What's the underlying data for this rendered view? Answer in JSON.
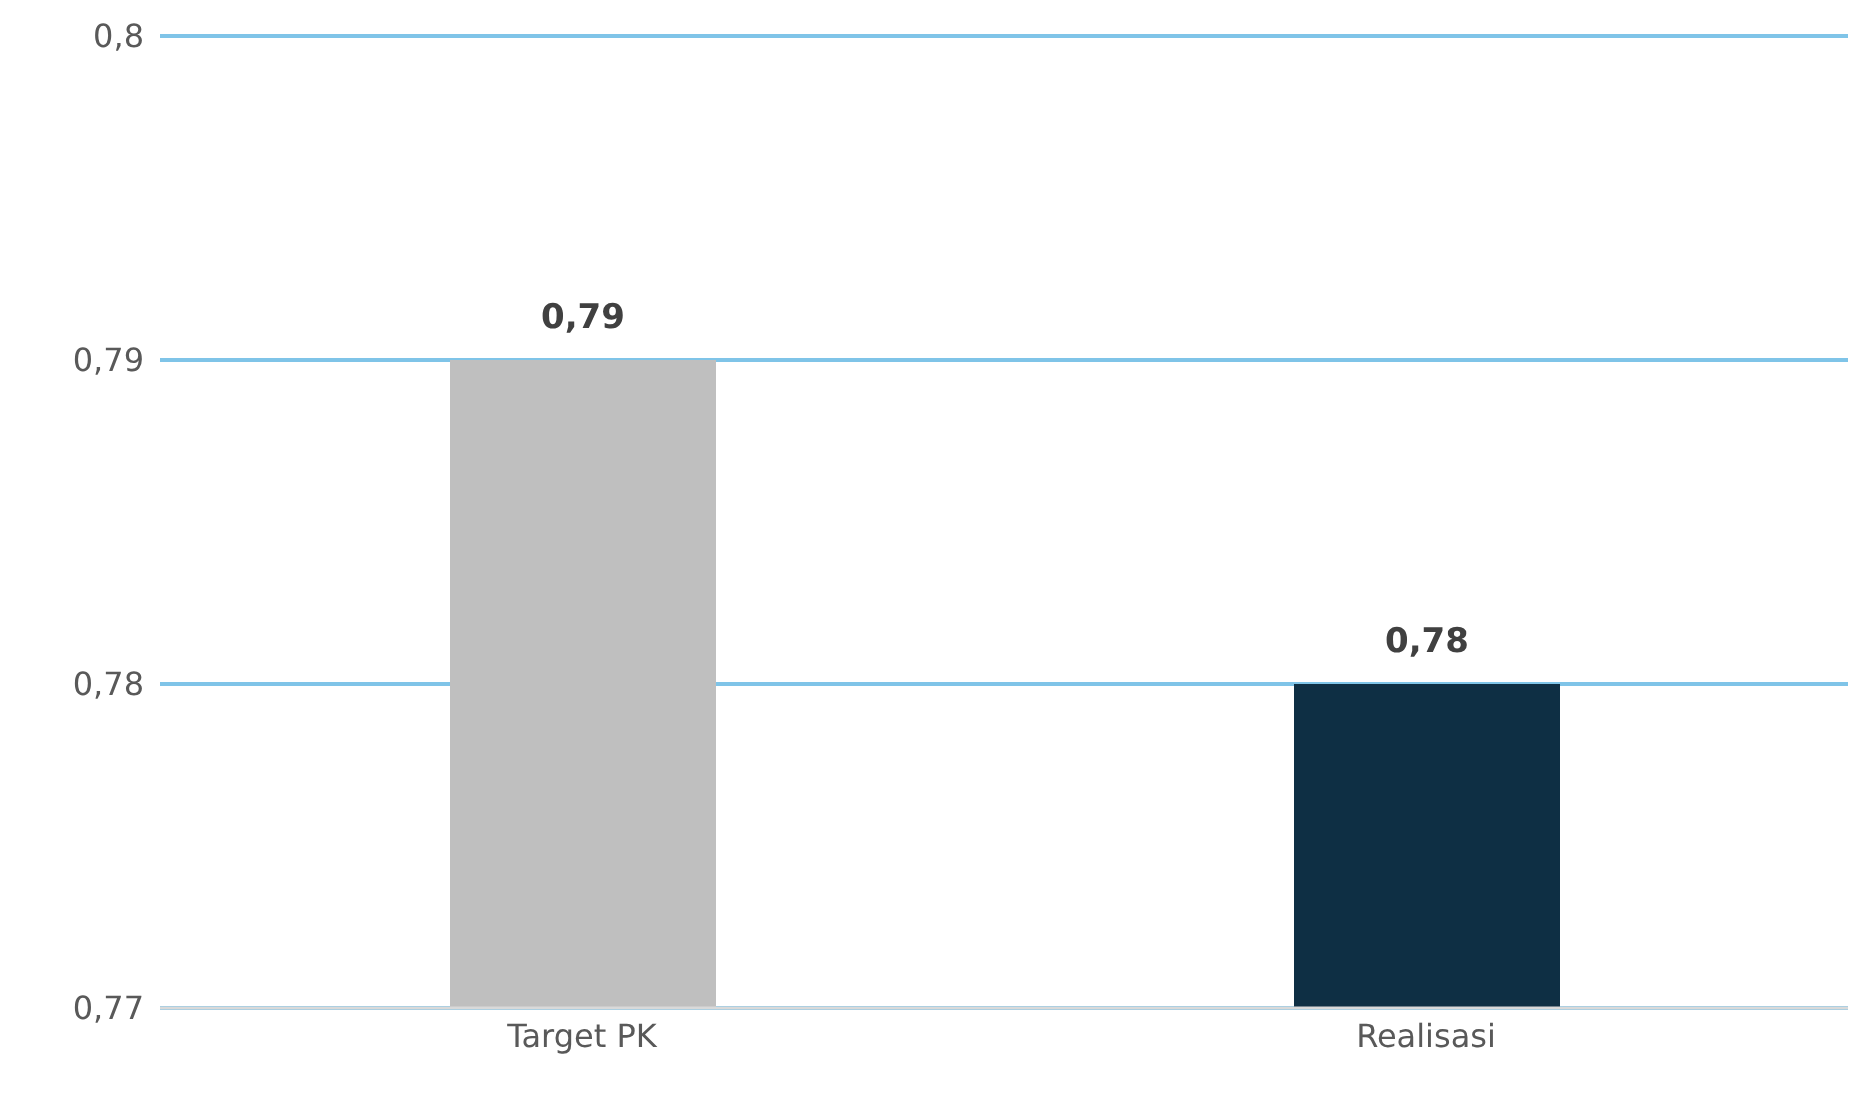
{
  "chart_data": {
    "type": "bar",
    "categories": [
      "Target PK",
      "Realisasi"
    ],
    "values": [
      0.79,
      0.78
    ],
    "colors": [
      "#bfbfbf",
      "#0e2f44"
    ],
    "value_labels": [
      "0,79",
      "0,78"
    ],
    "ylim": [
      0.77,
      0.8
    ],
    "yticks": [
      {
        "value": 0.77,
        "label": "0,77"
      },
      {
        "value": 0.78,
        "label": "0,78"
      },
      {
        "value": 0.79,
        "label": "0,79"
      },
      {
        "value": 0.8,
        "label": "0,8"
      }
    ],
    "grid": "y",
    "legend": false
  }
}
